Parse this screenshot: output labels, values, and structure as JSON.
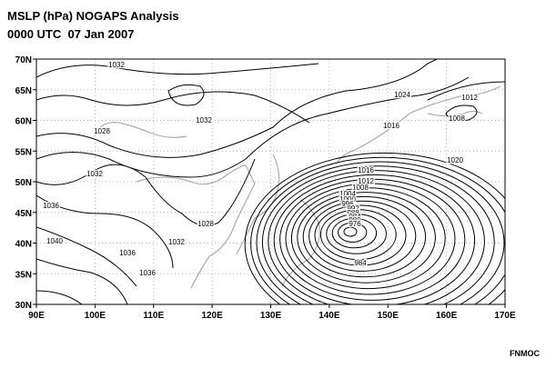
{
  "chart_data": {
    "type": "map",
    "title": "MSLP (hPa) NOGAPS Analysis",
    "subtitle": "0000 UTC  07 Jan 2007",
    "credit": "FNMOC",
    "xlim": [
      90,
      170
    ],
    "ylim": [
      30,
      70
    ],
    "xticks": [
      {
        "value": 90,
        "label": "90E"
      },
      {
        "value": 100,
        "label": "100E"
      },
      {
        "value": 110,
        "label": "110E"
      },
      {
        "value": 120,
        "label": "120E"
      },
      {
        "value": 130,
        "label": "130E"
      },
      {
        "value": 140,
        "label": "140E"
      },
      {
        "value": 150,
        "label": "150E"
      },
      {
        "value": 160,
        "label": "160E"
      },
      {
        "value": 170,
        "label": "170E"
      }
    ],
    "yticks": [
      {
        "value": 30,
        "label": "30N"
      },
      {
        "value": 35,
        "label": "35N"
      },
      {
        "value": 40,
        "label": "40N"
      },
      {
        "value": 45,
        "label": "45N"
      },
      {
        "value": 50,
        "label": "50N"
      },
      {
        "value": 55,
        "label": "55N"
      },
      {
        "value": 60,
        "label": "60N"
      },
      {
        "value": 65,
        "label": "65N"
      },
      {
        "value": 70,
        "label": "70N"
      }
    ],
    "grid": true,
    "contour_labels": [
      1032,
      1024,
      1012,
      1032,
      1016,
      1008,
      1028,
      1016,
      1020,
      1032,
      1012,
      1008,
      1004,
      1000,
      996,
      992,
      988,
      984,
      980,
      976,
      1036,
      1028,
      1040,
      1032,
      1036,
      984,
      1036
    ]
  }
}
